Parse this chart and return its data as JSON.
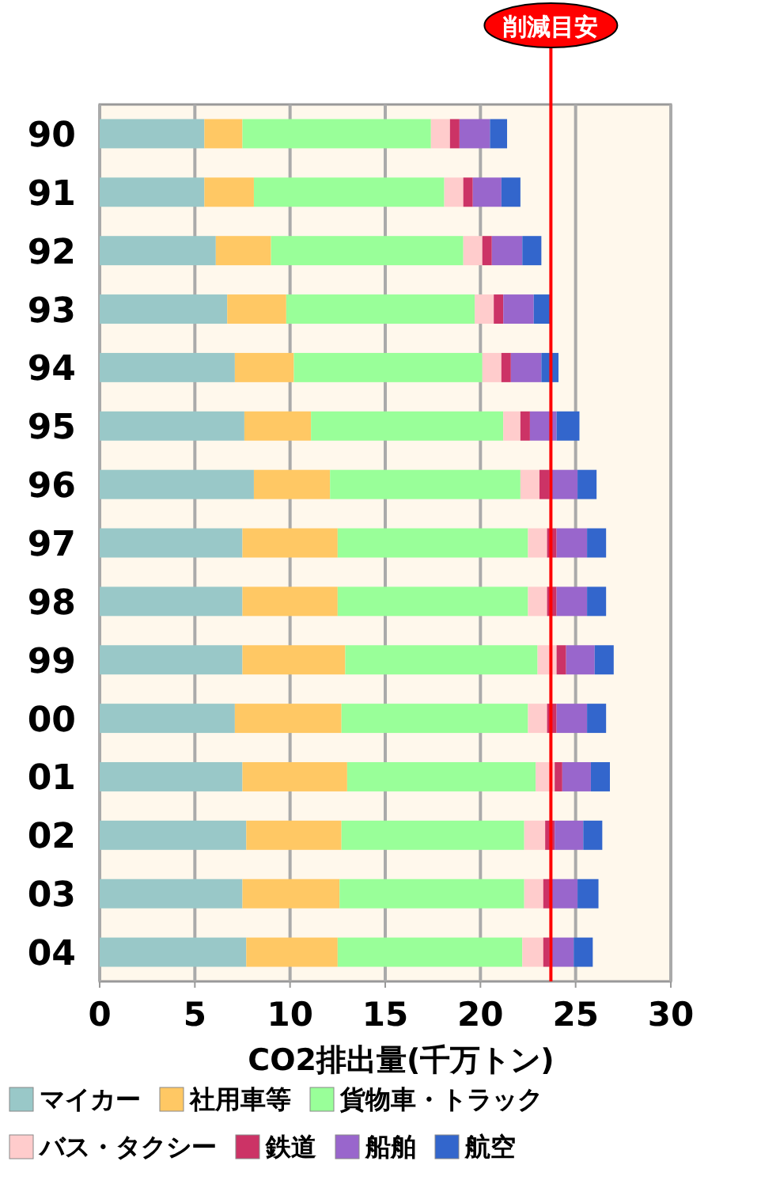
{
  "chart_data": {
    "type": "bar",
    "orientation": "horizontal",
    "stacked": true,
    "categories": [
      "90",
      "91",
      "92",
      "93",
      "94",
      "95",
      "96",
      "97",
      "98",
      "99",
      "00",
      "01",
      "02",
      "03",
      "04"
    ],
    "series": [
      {
        "name": "マイカー",
        "color": "#99c8c8",
        "values": [
          5.5,
          5.5,
          6.1,
          6.7,
          7.1,
          7.6,
          8.1,
          7.5,
          7.5,
          7.5,
          7.1,
          7.5,
          7.7,
          7.5,
          7.7
        ]
      },
      {
        "name": "社用車等",
        "color": "#ffc864",
        "values": [
          2.0,
          2.6,
          2.9,
          3.1,
          3.1,
          3.5,
          4.0,
          5.0,
          5.0,
          5.4,
          5.6,
          5.5,
          5.0,
          5.1,
          4.8
        ]
      },
      {
        "name": "貨物車・トラック",
        "color": "#99ff99",
        "values": [
          9.9,
          10.0,
          10.1,
          9.9,
          9.9,
          10.1,
          10.0,
          10.0,
          10.0,
          10.1,
          9.8,
          9.9,
          9.6,
          9.7,
          9.7
        ]
      },
      {
        "name": "バス・タクシー",
        "color": "#ffcccc",
        "values": [
          1.0,
          1.0,
          1.0,
          1.0,
          1.0,
          0.9,
          1.0,
          1.0,
          1.0,
          1.0,
          1.0,
          1.0,
          1.1,
          1.0,
          1.1
        ]
      },
      {
        "name": "鉄道",
        "color": "#cc3366",
        "values": [
          0.5,
          0.5,
          0.5,
          0.5,
          0.5,
          0.5,
          0.5,
          0.5,
          0.5,
          0.5,
          0.5,
          0.4,
          0.5,
          0.4,
          0.3
        ]
      },
      {
        "name": "船舶",
        "color": "#9966cc",
        "values": [
          1.6,
          1.5,
          1.6,
          1.6,
          1.6,
          1.4,
          1.5,
          1.6,
          1.6,
          1.5,
          1.6,
          1.5,
          1.5,
          1.4,
          1.3
        ]
      },
      {
        "name": "航空",
        "color": "#3366cc",
        "values": [
          0.9,
          1.0,
          1.0,
          0.9,
          0.9,
          1.2,
          1.0,
          1.0,
          1.0,
          1.0,
          1.0,
          1.0,
          1.0,
          1.1,
          1.0
        ]
      }
    ],
    "xlim": [
      0,
      30
    ],
    "xticks": [
      0,
      5,
      10,
      15,
      20,
      25,
      30
    ],
    "xlabel": "CO2排出量(千万トン)",
    "ref_lines": [
      {
        "axis": "x",
        "value": 23.7,
        "label": "削減目安",
        "color": "#ff0000"
      }
    ],
    "grid": "x",
    "legend": "bottom"
  }
}
